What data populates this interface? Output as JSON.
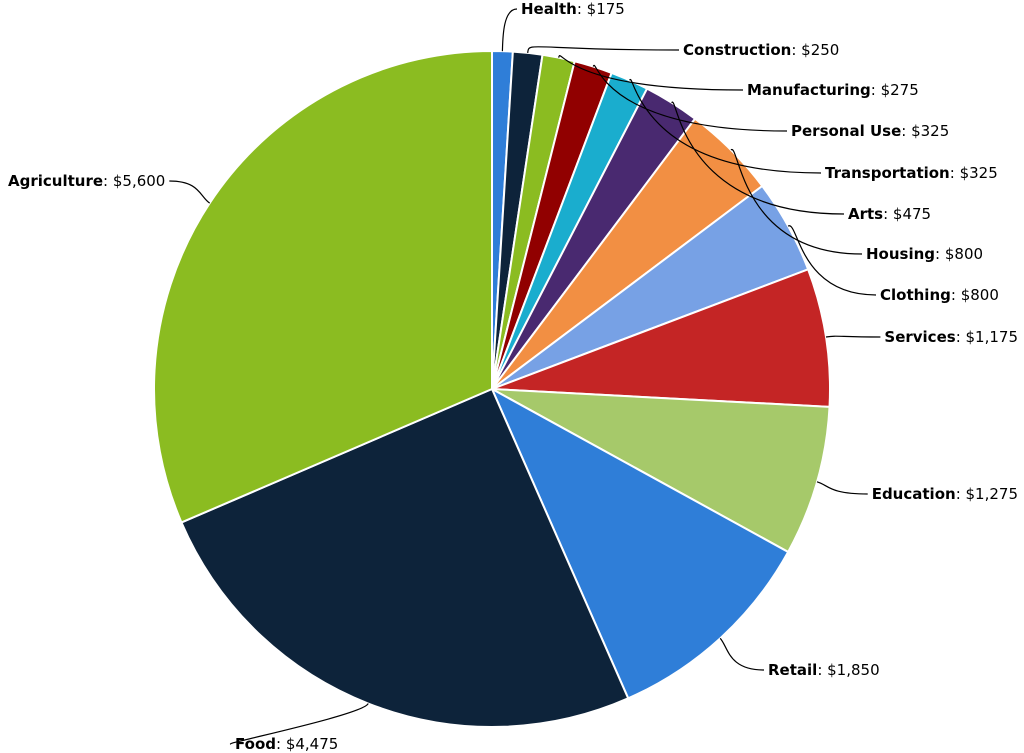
{
  "chart_data": {
    "type": "pie",
    "title": "",
    "slices": [
      {
        "name": "Health",
        "value": 175,
        "value_label": "$175",
        "color": "#2f7ed8"
      },
      {
        "name": "Construction",
        "value": 250,
        "value_label": "$250",
        "color": "#0d233a"
      },
      {
        "name": "Manufacturing",
        "value": 275,
        "value_label": "$275",
        "color": "#8bbc21"
      },
      {
        "name": "Personal Use",
        "value": 325,
        "value_label": "$325",
        "color": "#910000"
      },
      {
        "name": "Transportation",
        "value": 325,
        "value_label": "$325",
        "color": "#1aadce"
      },
      {
        "name": "Arts",
        "value": 475,
        "value_label": "$475",
        "color": "#492970"
      },
      {
        "name": "Housing",
        "value": 800,
        "value_label": "$800",
        "color": "#f28f43"
      },
      {
        "name": "Clothing",
        "value": 800,
        "value_label": "$800",
        "color": "#77a1e5"
      },
      {
        "name": "Services",
        "value": 1175,
        "value_label": "$1,175",
        "color": "#c42525"
      },
      {
        "name": "Education",
        "value": 1275,
        "value_label": "$1,275",
        "color": "#a6c96a"
      },
      {
        "name": "Retail",
        "value": 1850,
        "value_label": "$1,850",
        "color": "#2f7ed8"
      },
      {
        "name": "Food",
        "value": 4475,
        "value_label": "$4,475",
        "color": "#0d233a"
      },
      {
        "name": "Agriculture",
        "value": 5600,
        "value_label": "$5,600",
        "color": "#8bbc21"
      }
    ],
    "legend": "none",
    "data_labels": "outside with connector lines, format 'Name: $value'"
  }
}
